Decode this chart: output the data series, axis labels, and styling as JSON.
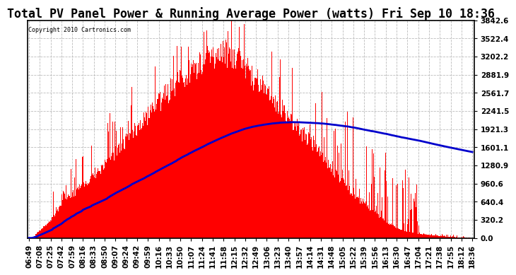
{
  "title": "Total PV Panel Power & Running Average Power (watts) Fri Sep 10 18:36",
  "copyright": "Copyright 2010 Cartronics.com",
  "ymax": 3842.6,
  "ymin": 0.0,
  "yticks": [
    0.0,
    320.2,
    640.4,
    960.6,
    1280.9,
    1601.1,
    1921.3,
    2241.5,
    2561.7,
    2881.9,
    3202.2,
    3522.4,
    3842.6
  ],
  "xtick_labels": [
    "06:49",
    "07:08",
    "07:25",
    "07:42",
    "07:59",
    "08:16",
    "08:33",
    "08:50",
    "09:07",
    "09:24",
    "09:42",
    "09:59",
    "10:16",
    "10:33",
    "10:50",
    "11:07",
    "11:24",
    "11:41",
    "11:58",
    "12:15",
    "12:32",
    "12:49",
    "13:06",
    "13:23",
    "13:40",
    "13:57",
    "14:14",
    "14:31",
    "14:48",
    "15:05",
    "15:22",
    "15:39",
    "15:56",
    "16:13",
    "16:30",
    "16:47",
    "17:04",
    "17:21",
    "17:38",
    "17:55",
    "18:12",
    "18:36"
  ],
  "bar_color": "#FF0000",
  "line_color": "#0000CC",
  "background_color": "#FFFFFF",
  "grid_color": "#BBBBBB",
  "title_fontsize": 12,
  "tick_fontsize": 7.5,
  "n_points": 700
}
